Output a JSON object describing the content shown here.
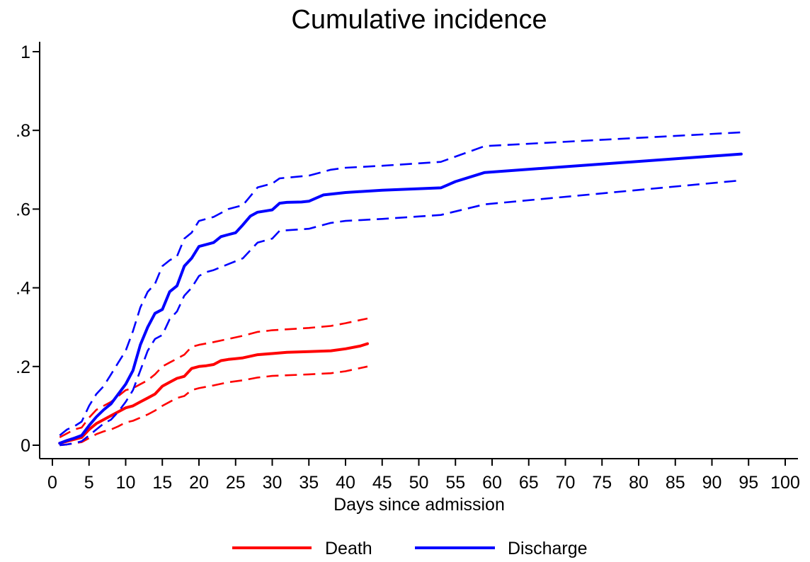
{
  "chart_data": {
    "type": "line",
    "title": "Cumulative incidence",
    "xlabel": "Days since admission",
    "ylabel": "",
    "xlim": [
      0,
      100
    ],
    "ylim": [
      0,
      1
    ],
    "x_ticks": [
      0,
      5,
      10,
      15,
      20,
      25,
      30,
      35,
      40,
      45,
      50,
      55,
      60,
      65,
      70,
      75,
      80,
      85,
      90,
      95,
      100
    ],
    "x_tick_labels": [
      "0",
      "5",
      "10",
      "15",
      "20",
      "25",
      "30",
      "35",
      "40",
      "45",
      "50",
      "55",
      "60",
      "65",
      "70",
      "75",
      "80",
      "85",
      "90",
      "95",
      "100"
    ],
    "y_ticks": [
      0,
      0.2,
      0.4,
      0.6,
      0.8,
      1
    ],
    "y_tick_labels": [
      "0",
      ".2",
      ".4",
      ".6",
      ".8",
      "1"
    ],
    "grid": false,
    "legend": {
      "position": "bottom",
      "entries": [
        "Death",
        "Discharge"
      ]
    },
    "series": [
      {
        "name": "Death",
        "color": "#ff0000",
        "style": "solid",
        "x": [
          1,
          2,
          3,
          4,
          5,
          6,
          7,
          8,
          9,
          10,
          11,
          12,
          13,
          14,
          15,
          16,
          17,
          18,
          19,
          20,
          21,
          22,
          23,
          24,
          25,
          26,
          27,
          28,
          30,
          32,
          35,
          38,
          40,
          42,
          43
        ],
        "y": [
          0.005,
          0.01,
          0.015,
          0.02,
          0.04,
          0.055,
          0.065,
          0.075,
          0.085,
          0.095,
          0.1,
          0.11,
          0.12,
          0.13,
          0.15,
          0.16,
          0.17,
          0.175,
          0.195,
          0.2,
          0.202,
          0.205,
          0.215,
          0.218,
          0.22,
          0.222,
          0.226,
          0.23,
          0.233,
          0.236,
          0.238,
          0.24,
          0.245,
          0.252,
          0.258
        ]
      },
      {
        "name": "",
        "color": "#ff0000",
        "style": "dash",
        "x": [
          1,
          2,
          3,
          4,
          5,
          6,
          7,
          8,
          9,
          10,
          11,
          12,
          13,
          14,
          15,
          16,
          17,
          18,
          19,
          20,
          22,
          24,
          26,
          28,
          30,
          35,
          38,
          40,
          43
        ],
        "y": [
          0.02,
          0.03,
          0.04,
          0.045,
          0.07,
          0.09,
          0.1,
          0.11,
          0.125,
          0.14,
          0.145,
          0.155,
          0.165,
          0.18,
          0.2,
          0.21,
          0.22,
          0.23,
          0.25,
          0.255,
          0.262,
          0.27,
          0.278,
          0.288,
          0.292,
          0.298,
          0.303,
          0.31,
          0.322
        ]
      },
      {
        "name": "",
        "color": "#ff0000",
        "style": "dash",
        "x": [
          1,
          2,
          3,
          4,
          5,
          6,
          7,
          8,
          9,
          10,
          11,
          12,
          13,
          14,
          15,
          16,
          17,
          18,
          19,
          20,
          22,
          24,
          26,
          28,
          30,
          35,
          38,
          40,
          43
        ],
        "y": [
          0.0,
          0.002,
          0.005,
          0.008,
          0.018,
          0.028,
          0.035,
          0.04,
          0.048,
          0.058,
          0.062,
          0.07,
          0.078,
          0.088,
          0.1,
          0.11,
          0.12,
          0.125,
          0.14,
          0.145,
          0.152,
          0.16,
          0.165,
          0.172,
          0.176,
          0.18,
          0.183,
          0.188,
          0.2
        ]
      },
      {
        "name": "Discharge",
        "color": "#0000ff",
        "style": "solid",
        "x": [
          1,
          2,
          3,
          4,
          5,
          6,
          7,
          8,
          9,
          10,
          11,
          12,
          13,
          14,
          15,
          16,
          17,
          18,
          19,
          20,
          21,
          22,
          23,
          24,
          25,
          26,
          27,
          28,
          29,
          30,
          31,
          32,
          34,
          35,
          36,
          37,
          38,
          40,
          45,
          53,
          55,
          59,
          94
        ],
        "y": [
          0.005,
          0.012,
          0.018,
          0.025,
          0.05,
          0.072,
          0.09,
          0.105,
          0.13,
          0.155,
          0.19,
          0.255,
          0.3,
          0.335,
          0.345,
          0.39,
          0.405,
          0.455,
          0.475,
          0.505,
          0.51,
          0.515,
          0.53,
          0.535,
          0.54,
          0.56,
          0.582,
          0.592,
          0.595,
          0.598,
          0.615,
          0.617,
          0.618,
          0.62,
          0.628,
          0.636,
          0.638,
          0.642,
          0.648,
          0.654,
          0.67,
          0.693,
          0.74
        ]
      },
      {
        "name": "",
        "color": "#0000ff",
        "style": "dash",
        "x": [
          1,
          2,
          3,
          4,
          5,
          6,
          7,
          8,
          9,
          10,
          11,
          12,
          13,
          14,
          15,
          16,
          17,
          18,
          19,
          20,
          21,
          22,
          24,
          26,
          28,
          30,
          31,
          35,
          38,
          40,
          45,
          53,
          59,
          94
        ],
        "y": [
          0.025,
          0.04,
          0.048,
          0.06,
          0.1,
          0.13,
          0.15,
          0.18,
          0.21,
          0.24,
          0.29,
          0.35,
          0.39,
          0.41,
          0.455,
          0.47,
          0.48,
          0.525,
          0.54,
          0.57,
          0.575,
          0.58,
          0.6,
          0.61,
          0.655,
          0.665,
          0.678,
          0.685,
          0.7,
          0.705,
          0.71,
          0.72,
          0.76,
          0.795
        ]
      },
      {
        "name": "",
        "color": "#0000ff",
        "style": "dash",
        "x": [
          1,
          2,
          3,
          4,
          5,
          6,
          7,
          8,
          9,
          10,
          11,
          12,
          13,
          14,
          15,
          16,
          17,
          18,
          19,
          20,
          21,
          22,
          24,
          26,
          28,
          30,
          31,
          35,
          38,
          40,
          45,
          53,
          59,
          94
        ],
        "y": [
          0.0,
          0.002,
          0.005,
          0.01,
          0.025,
          0.04,
          0.055,
          0.065,
          0.085,
          0.11,
          0.14,
          0.19,
          0.24,
          0.27,
          0.28,
          0.32,
          0.34,
          0.38,
          0.4,
          0.43,
          0.44,
          0.445,
          0.46,
          0.475,
          0.515,
          0.525,
          0.545,
          0.55,
          0.565,
          0.57,
          0.575,
          0.585,
          0.612,
          0.673
        ]
      }
    ]
  }
}
